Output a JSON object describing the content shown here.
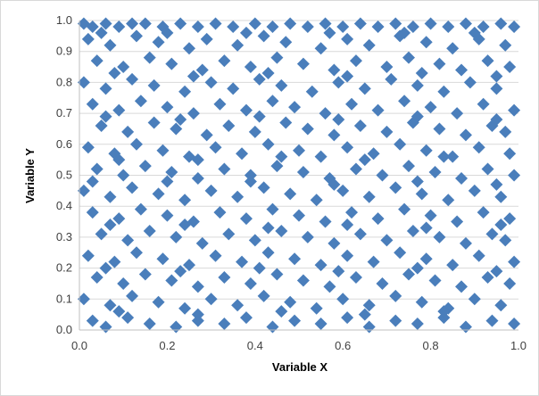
{
  "chart_data": {
    "type": "scatter",
    "title": "",
    "xlabel": "Variable X",
    "ylabel": "Variable Y",
    "xlim": [
      0.0,
      1.0
    ],
    "ylim": [
      0.0,
      1.0
    ],
    "x_ticks": [
      "0.0",
      "0.2",
      "0.4",
      "0.6",
      "0.8",
      "1.0"
    ],
    "y_ticks": [
      "0.0",
      "0.1",
      "0.2",
      "0.3",
      "0.4",
      "0.5",
      "0.6",
      "0.7",
      "0.8",
      "0.9",
      "1.0"
    ],
    "grid": "horizontal",
    "legend": "none",
    "marker": "diamond",
    "marker_color": "#4a7ebb",
    "series": [
      {
        "points": [
          [
            0.01,
            0.99
          ],
          [
            0.03,
            0.98
          ],
          [
            0.06,
            0.99
          ],
          [
            0.09,
            0.98
          ],
          [
            0.12,
            0.99
          ],
          [
            0.15,
            0.99
          ],
          [
            0.19,
            0.98
          ],
          [
            0.23,
            0.99
          ],
          [
            0.27,
            0.98
          ],
          [
            0.31,
            0.99
          ],
          [
            0.35,
            0.98
          ],
          [
            0.4,
            0.99
          ],
          [
            0.44,
            0.98
          ],
          [
            0.48,
            0.99
          ],
          [
            0.52,
            0.98
          ],
          [
            0.56,
            0.99
          ],
          [
            0.6,
            0.98
          ],
          [
            0.64,
            0.99
          ],
          [
            0.68,
            0.98
          ],
          [
            0.72,
            0.99
          ],
          [
            0.76,
            0.98
          ],
          [
            0.8,
            0.99
          ],
          [
            0.84,
            0.98
          ],
          [
            0.88,
            0.99
          ],
          [
            0.92,
            0.98
          ],
          [
            0.96,
            0.99
          ],
          [
            0.99,
            0.98
          ],
          [
            0.02,
            0.94
          ],
          [
            0.07,
            0.92
          ],
          [
            0.13,
            0.95
          ],
          [
            0.18,
            0.93
          ],
          [
            0.25,
            0.91
          ],
          [
            0.29,
            0.94
          ],
          [
            0.36,
            0.92
          ],
          [
            0.42,
            0.95
          ],
          [
            0.47,
            0.93
          ],
          [
            0.55,
            0.91
          ],
          [
            0.61,
            0.94
          ],
          [
            0.66,
            0.92
          ],
          [
            0.73,
            0.95
          ],
          [
            0.79,
            0.93
          ],
          [
            0.85,
            0.91
          ],
          [
            0.91,
            0.94
          ],
          [
            0.97,
            0.92
          ],
          [
            0.04,
            0.87
          ],
          [
            0.1,
            0.85
          ],
          [
            0.16,
            0.88
          ],
          [
            0.21,
            0.86
          ],
          [
            0.28,
            0.84
          ],
          [
            0.33,
            0.87
          ],
          [
            0.39,
            0.85
          ],
          [
            0.45,
            0.88
          ],
          [
            0.51,
            0.86
          ],
          [
            0.58,
            0.84
          ],
          [
            0.63,
            0.87
          ],
          [
            0.7,
            0.85
          ],
          [
            0.75,
            0.88
          ],
          [
            0.82,
            0.86
          ],
          [
            0.87,
            0.84
          ],
          [
            0.93,
            0.87
          ],
          [
            0.98,
            0.85
          ],
          [
            0.01,
            0.8
          ],
          [
            0.06,
            0.78
          ],
          [
            0.12,
            0.81
          ],
          [
            0.17,
            0.79
          ],
          [
            0.24,
            0.77
          ],
          [
            0.3,
            0.8
          ],
          [
            0.35,
            0.78
          ],
          [
            0.41,
            0.81
          ],
          [
            0.46,
            0.79
          ],
          [
            0.53,
            0.77
          ],
          [
            0.59,
            0.8
          ],
          [
            0.65,
            0.78
          ],
          [
            0.71,
            0.81
          ],
          [
            0.77,
            0.79
          ],
          [
            0.83,
            0.77
          ],
          [
            0.89,
            0.8
          ],
          [
            0.95,
            0.78
          ],
          [
            0.03,
            0.73
          ],
          [
            0.09,
            0.71
          ],
          [
            0.14,
            0.74
          ],
          [
            0.2,
            0.72
          ],
          [
            0.26,
            0.7
          ],
          [
            0.32,
            0.73
          ],
          [
            0.38,
            0.71
          ],
          [
            0.44,
            0.74
          ],
          [
            0.49,
            0.72
          ],
          [
            0.56,
            0.7
          ],
          [
            0.62,
            0.73
          ],
          [
            0.68,
            0.71
          ],
          [
            0.74,
            0.74
          ],
          [
            0.8,
            0.72
          ],
          [
            0.86,
            0.7
          ],
          [
            0.92,
            0.73
          ],
          [
            0.99,
            0.71
          ],
          [
            0.05,
            0.66
          ],
          [
            0.11,
            0.64
          ],
          [
            0.17,
            0.67
          ],
          [
            0.22,
            0.65
          ],
          [
            0.29,
            0.63
          ],
          [
            0.34,
            0.66
          ],
          [
            0.4,
            0.64
          ],
          [
            0.47,
            0.67
          ],
          [
            0.52,
            0.65
          ],
          [
            0.58,
            0.63
          ],
          [
            0.64,
            0.66
          ],
          [
            0.7,
            0.64
          ],
          [
            0.76,
            0.67
          ],
          [
            0.82,
            0.65
          ],
          [
            0.88,
            0.63
          ],
          [
            0.94,
            0.66
          ],
          [
            0.97,
            0.64
          ],
          [
            0.02,
            0.59
          ],
          [
            0.08,
            0.57
          ],
          [
            0.13,
            0.6
          ],
          [
            0.19,
            0.58
          ],
          [
            0.25,
            0.56
          ],
          [
            0.31,
            0.59
          ],
          [
            0.37,
            0.57
          ],
          [
            0.43,
            0.6
          ],
          [
            0.5,
            0.58
          ],
          [
            0.55,
            0.56
          ],
          [
            0.61,
            0.59
          ],
          [
            0.67,
            0.57
          ],
          [
            0.73,
            0.6
          ],
          [
            0.79,
            0.58
          ],
          [
            0.85,
            0.56
          ],
          [
            0.91,
            0.59
          ],
          [
            0.98,
            0.57
          ],
          [
            0.04,
            0.52
          ],
          [
            0.1,
            0.5
          ],
          [
            0.15,
            0.53
          ],
          [
            0.21,
            0.51
          ],
          [
            0.27,
            0.49
          ],
          [
            0.33,
            0.52
          ],
          [
            0.39,
            0.5
          ],
          [
            0.45,
            0.53
          ],
          [
            0.51,
            0.51
          ],
          [
            0.57,
            0.49
          ],
          [
            0.63,
            0.52
          ],
          [
            0.69,
            0.5
          ],
          [
            0.75,
            0.53
          ],
          [
            0.81,
            0.51
          ],
          [
            0.87,
            0.49
          ],
          [
            0.93,
            0.52
          ],
          [
            0.99,
            0.5
          ],
          [
            0.01,
            0.45
          ],
          [
            0.07,
            0.43
          ],
          [
            0.12,
            0.46
          ],
          [
            0.18,
            0.44
          ],
          [
            0.24,
            0.42
          ],
          [
            0.3,
            0.45
          ],
          [
            0.36,
            0.43
          ],
          [
            0.42,
            0.46
          ],
          [
            0.48,
            0.44
          ],
          [
            0.54,
            0.42
          ],
          [
            0.6,
            0.45
          ],
          [
            0.66,
            0.43
          ],
          [
            0.72,
            0.46
          ],
          [
            0.78,
            0.44
          ],
          [
            0.84,
            0.42
          ],
          [
            0.9,
            0.45
          ],
          [
            0.96,
            0.43
          ],
          [
            0.03,
            0.38
          ],
          [
            0.09,
            0.36
          ],
          [
            0.14,
            0.39
          ],
          [
            0.2,
            0.37
          ],
          [
            0.26,
            0.35
          ],
          [
            0.32,
            0.38
          ],
          [
            0.38,
            0.36
          ],
          [
            0.44,
            0.39
          ],
          [
            0.5,
            0.37
          ],
          [
            0.56,
            0.35
          ],
          [
            0.62,
            0.38
          ],
          [
            0.68,
            0.36
          ],
          [
            0.74,
            0.39
          ],
          [
            0.8,
            0.37
          ],
          [
            0.86,
            0.35
          ],
          [
            0.92,
            0.38
          ],
          [
            0.98,
            0.36
          ],
          [
            0.05,
            0.31
          ],
          [
            0.11,
            0.29
          ],
          [
            0.16,
            0.32
          ],
          [
            0.22,
            0.3
          ],
          [
            0.28,
            0.28
          ],
          [
            0.34,
            0.31
          ],
          [
            0.4,
            0.29
          ],
          [
            0.46,
            0.32
          ],
          [
            0.52,
            0.3
          ],
          [
            0.58,
            0.28
          ],
          [
            0.64,
            0.31
          ],
          [
            0.7,
            0.29
          ],
          [
            0.76,
            0.32
          ],
          [
            0.82,
            0.3
          ],
          [
            0.88,
            0.28
          ],
          [
            0.94,
            0.31
          ],
          [
            0.97,
            0.29
          ],
          [
            0.02,
            0.24
          ],
          [
            0.08,
            0.22
          ],
          [
            0.13,
            0.25
          ],
          [
            0.19,
            0.23
          ],
          [
            0.25,
            0.21
          ],
          [
            0.31,
            0.24
          ],
          [
            0.37,
            0.22
          ],
          [
            0.43,
            0.25
          ],
          [
            0.49,
            0.23
          ],
          [
            0.55,
            0.21
          ],
          [
            0.61,
            0.24
          ],
          [
            0.67,
            0.22
          ],
          [
            0.73,
            0.25
          ],
          [
            0.79,
            0.23
          ],
          [
            0.85,
            0.21
          ],
          [
            0.91,
            0.24
          ],
          [
            0.99,
            0.22
          ],
          [
            0.04,
            0.17
          ],
          [
            0.1,
            0.15
          ],
          [
            0.15,
            0.18
          ],
          [
            0.21,
            0.16
          ],
          [
            0.27,
            0.14
          ],
          [
            0.33,
            0.17
          ],
          [
            0.39,
            0.15
          ],
          [
            0.45,
            0.18
          ],
          [
            0.51,
            0.16
          ],
          [
            0.57,
            0.14
          ],
          [
            0.63,
            0.17
          ],
          [
            0.69,
            0.15
          ],
          [
            0.75,
            0.18
          ],
          [
            0.81,
            0.16
          ],
          [
            0.87,
            0.14
          ],
          [
            0.93,
            0.17
          ],
          [
            0.98,
            0.15
          ],
          [
            0.01,
            0.1
          ],
          [
            0.07,
            0.08
          ],
          [
            0.12,
            0.11
          ],
          [
            0.18,
            0.09
          ],
          [
            0.24,
            0.07
          ],
          [
            0.3,
            0.1
          ],
          [
            0.36,
            0.08
          ],
          [
            0.42,
            0.11
          ],
          [
            0.48,
            0.09
          ],
          [
            0.54,
            0.07
          ],
          [
            0.6,
            0.1
          ],
          [
            0.66,
            0.08
          ],
          [
            0.72,
            0.11
          ],
          [
            0.78,
            0.09
          ],
          [
            0.84,
            0.07
          ],
          [
            0.9,
            0.1
          ],
          [
            0.96,
            0.08
          ],
          [
            0.03,
            0.03
          ],
          [
            0.06,
            0.01
          ],
          [
            0.11,
            0.04
          ],
          [
            0.16,
            0.02
          ],
          [
            0.22,
            0.01
          ],
          [
            0.27,
            0.03
          ],
          [
            0.33,
            0.02
          ],
          [
            0.38,
            0.04
          ],
          [
            0.44,
            0.01
          ],
          [
            0.49,
            0.03
          ],
          [
            0.55,
            0.02
          ],
          [
            0.61,
            0.04
          ],
          [
            0.66,
            0.01
          ],
          [
            0.72,
            0.03
          ],
          [
            0.77,
            0.02
          ],
          [
            0.83,
            0.04
          ],
          [
            0.88,
            0.01
          ],
          [
            0.94,
            0.03
          ],
          [
            0.99,
            0.02
          ],
          [
            0.05,
            0.96
          ],
          [
            0.2,
            0.96
          ],
          [
            0.38,
            0.96
          ],
          [
            0.57,
            0.96
          ],
          [
            0.74,
            0.96
          ],
          [
            0.9,
            0.96
          ],
          [
            0.08,
            0.83
          ],
          [
            0.26,
            0.82
          ],
          [
            0.43,
            0.83
          ],
          [
            0.61,
            0.82
          ],
          [
            0.78,
            0.83
          ],
          [
            0.95,
            0.82
          ],
          [
            0.06,
            0.69
          ],
          [
            0.23,
            0.68
          ],
          [
            0.41,
            0.69
          ],
          [
            0.59,
            0.68
          ],
          [
            0.77,
            0.69
          ],
          [
            0.95,
            0.68
          ],
          [
            0.09,
            0.55
          ],
          [
            0.27,
            0.55
          ],
          [
            0.46,
            0.56
          ],
          [
            0.65,
            0.55
          ],
          [
            0.83,
            0.56
          ],
          [
            0.03,
            0.48
          ],
          [
            0.2,
            0.48
          ],
          [
            0.39,
            0.48
          ],
          [
            0.58,
            0.47
          ],
          [
            0.77,
            0.48
          ],
          [
            0.95,
            0.47
          ],
          [
            0.07,
            0.34
          ],
          [
            0.24,
            0.34
          ],
          [
            0.43,
            0.33
          ],
          [
            0.61,
            0.34
          ],
          [
            0.79,
            0.33
          ],
          [
            0.96,
            0.34
          ],
          [
            0.06,
            0.2
          ],
          [
            0.23,
            0.19
          ],
          [
            0.41,
            0.2
          ],
          [
            0.59,
            0.19
          ],
          [
            0.77,
            0.2
          ],
          [
            0.95,
            0.19
          ],
          [
            0.09,
            0.06
          ],
          [
            0.27,
            0.05
          ],
          [
            0.46,
            0.06
          ],
          [
            0.65,
            0.05
          ],
          [
            0.83,
            0.06
          ]
        ]
      }
    ]
  }
}
